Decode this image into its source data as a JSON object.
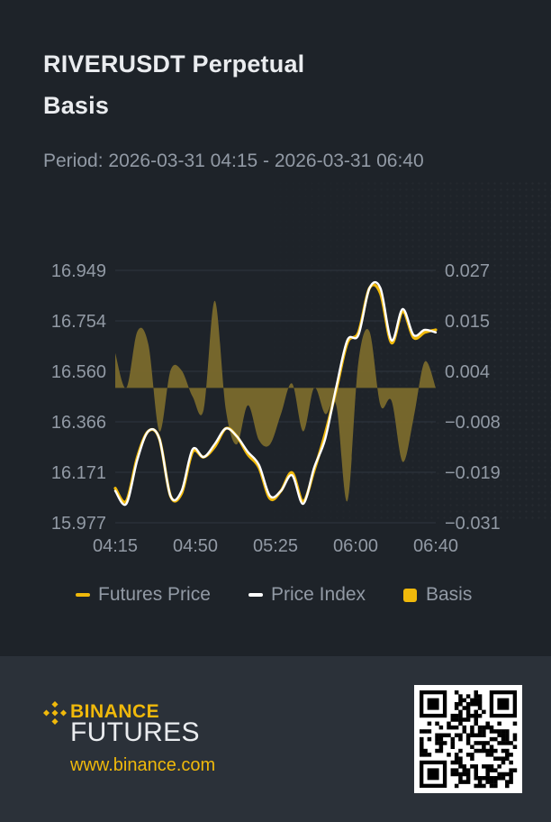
{
  "header": {
    "title_line1": "RIVERUSDT Perpetual",
    "title_line2": "Basis",
    "period_label": "Period:",
    "period_value": "2026-03-31 04:15 - 2026-03-31 06:40"
  },
  "legend": {
    "futures_label": "Futures Price",
    "index_label": "Price Index",
    "basis_label": "Basis"
  },
  "colors": {
    "background": "#1e2329",
    "footer": "#2b3139",
    "futures": "#f0b90b",
    "index": "#ffffff",
    "basis_fill": "#7a6a2c",
    "muted_text": "#929aa5"
  },
  "footer": {
    "brand_top": "BINANCE",
    "brand_bottom": "FUTURES",
    "url": "www.binance.com",
    "logo_icon": "binance-diamond-icon",
    "qr_icon": "qr-code-icon"
  },
  "chart_data": {
    "type": "line",
    "title": "",
    "x_ticks": [
      "04:15",
      "04:50",
      "05:25",
      "06:00",
      "06:40"
    ],
    "y_left_ticks": [
      "16.949",
      "16.754",
      "16.560",
      "16.366",
      "16.171",
      "15.977"
    ],
    "y_right_ticks": [
      "0.027",
      "0.015",
      "0.004",
      "−0.008",
      "−0.019",
      "−0.031"
    ],
    "y_left_range": [
      15.977,
      16.949
    ],
    "y_right_range": [
      -0.031,
      0.027
    ],
    "grid": true,
    "legend_position": "bottom",
    "x": [
      "04:15",
      "04:20",
      "04:25",
      "04:30",
      "04:35",
      "04:40",
      "04:45",
      "04:50",
      "04:55",
      "05:00",
      "05:05",
      "05:10",
      "05:15",
      "05:20",
      "05:25",
      "05:30",
      "05:35",
      "05:40",
      "05:45",
      "05:50",
      "05:55",
      "06:00",
      "06:05",
      "06:10",
      "06:15",
      "06:20",
      "06:25",
      "06:30",
      "06:35",
      "06:40"
    ],
    "series": [
      {
        "name": "Futures Price",
        "axis": "left",
        "values": [
          16.11,
          16.06,
          16.23,
          16.33,
          16.3,
          16.08,
          16.09,
          16.25,
          16.23,
          16.27,
          16.34,
          16.31,
          16.24,
          16.19,
          16.07,
          16.1,
          16.17,
          16.06,
          16.18,
          16.32,
          16.49,
          16.67,
          16.71,
          16.88,
          16.86,
          16.67,
          16.79,
          16.69,
          16.71,
          16.72
        ]
      },
      {
        "name": "Price Index",
        "axis": "left",
        "values": [
          16.1,
          16.05,
          16.22,
          16.33,
          16.3,
          16.08,
          16.1,
          16.26,
          16.23,
          16.28,
          16.34,
          16.31,
          16.25,
          16.2,
          16.08,
          16.1,
          16.16,
          16.05,
          16.19,
          16.3,
          16.5,
          16.68,
          16.7,
          16.88,
          16.88,
          16.68,
          16.8,
          16.7,
          16.72,
          16.71
        ]
      },
      {
        "name": "Basis",
        "axis": "right",
        "values": [
          0.008,
          0.0,
          0.013,
          0.01,
          -0.01,
          0.004,
          0.004,
          -0.002,
          -0.005,
          0.02,
          -0.005,
          -0.013,
          -0.004,
          -0.012,
          -0.013,
          -0.006,
          0.001,
          -0.01,
          0.0,
          -0.006,
          -0.004,
          -0.026,
          0.006,
          0.013,
          -0.004,
          -0.003,
          -0.017,
          -0.007,
          0.006,
          0.0
        ]
      }
    ]
  }
}
